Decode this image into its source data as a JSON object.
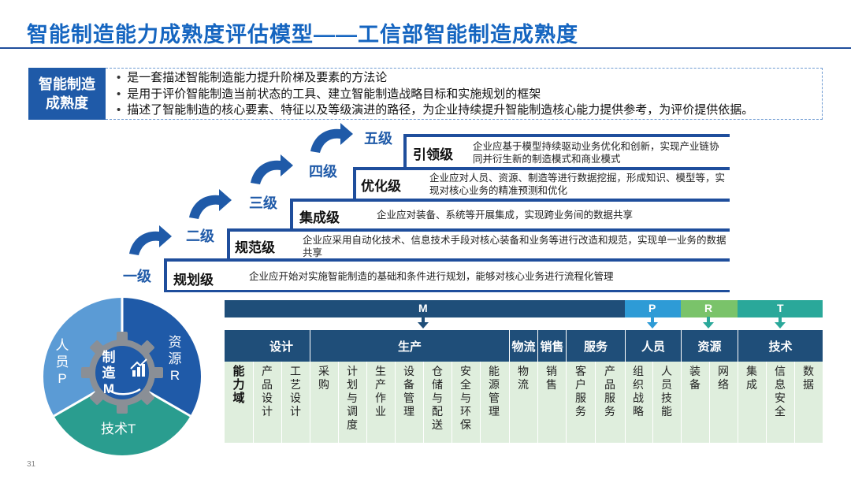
{
  "title": "智能制造能力成熟度评估模型——工信部智能制造成熟度",
  "definition": {
    "label_line1": "智能制造",
    "label_line2": "成熟度",
    "items": [
      "是一套描述智能制造能力提升阶梯及要素的方法论",
      "是用于评价智能制造当前状态的工具、建立智能制造战略目标和实施规划的框架",
      "描述了智能制造的核心要素、特征以及等级演进的路径，为企业持续提升智能制造核心能力提供参考，为评价提供依据。"
    ]
  },
  "levels": [
    {
      "num": "一级",
      "name": "规划级",
      "desc": "企业应开始对实施智能制造的基础和条件进行规划，能够对核心业务进行流程化管理"
    },
    {
      "num": "二级",
      "name": "规范级",
      "desc": "企业应采用自动化技术、信息技术手段对核心装备和业务等进行改造和规范，实现单一业务的数据共享"
    },
    {
      "num": "三级",
      "name": "集成级",
      "desc": "企业应对装备、系统等开展集成，实现跨业务间的数据共享"
    },
    {
      "num": "四级",
      "name": "优化级",
      "desc": "企业应对人员、资源、制造等进行数据挖掘，形成知识、模型等，实现对核心业务的精准预测和优化"
    },
    {
      "num": "五级",
      "name": "引领级",
      "desc": "企业应基于模型持续驱动业务优化和创新，实现产业链协同并衍生新的制造模式和商业模式"
    }
  ],
  "wheel": {
    "center_lines": [
      "制",
      "造",
      "M"
    ],
    "people_lines": [
      "人",
      "员",
      "P"
    ],
    "resource_lines": [
      "资",
      "源",
      "R"
    ],
    "tech_label": "技术T"
  },
  "domain": {
    "bar_labels": {
      "m": "M",
      "p": "P",
      "r": "R",
      "t": "T"
    },
    "row_label": [
      "能",
      "力",
      "域"
    ],
    "categories": [
      "设计",
      "生产",
      "物流",
      "销售",
      "服务",
      "人员",
      "资源",
      "技术"
    ],
    "items": [
      [
        "产",
        "品",
        "设",
        "计"
      ],
      [
        "工",
        "艺",
        "设",
        "计"
      ],
      [
        "采",
        "购"
      ],
      [
        "计",
        "划",
        "与",
        "调",
        "度"
      ],
      [
        "生",
        "产",
        "作",
        "业"
      ],
      [
        "设",
        "备",
        "管",
        "理"
      ],
      [
        "仓",
        "储",
        "与",
        "配",
        "送"
      ],
      [
        "安",
        "全",
        "与",
        "环",
        "保"
      ],
      [
        "能",
        "源",
        "管",
        "理"
      ],
      [
        "物",
        "流"
      ],
      [
        "销",
        "售"
      ],
      [
        "客",
        "户",
        "服",
        "务"
      ],
      [
        "产",
        "品",
        "服",
        "务"
      ],
      [
        "组",
        "织",
        "战",
        "略"
      ],
      [
        "人",
        "员",
        "技",
        "能"
      ],
      [
        "装",
        "备"
      ],
      [
        "网",
        "络"
      ],
      [
        "集",
        "成"
      ],
      [
        "信",
        "息",
        "安",
        "全"
      ],
      [
        "数",
        "据"
      ]
    ]
  },
  "page_number": "31",
  "colors": {
    "title": "#1565c0",
    "navy": "#1f4e79",
    "stair": "#1f4e9c",
    "bar_p": "#2e9bd6",
    "bar_r": "#7ac36a",
    "bar_t": "#2aa89a",
    "cell_bg": "#dfeedd",
    "wheel_people": "#5b9bd5",
    "wheel_resource": "#1f5aa8",
    "wheel_tech": "#2a9d8f"
  }
}
